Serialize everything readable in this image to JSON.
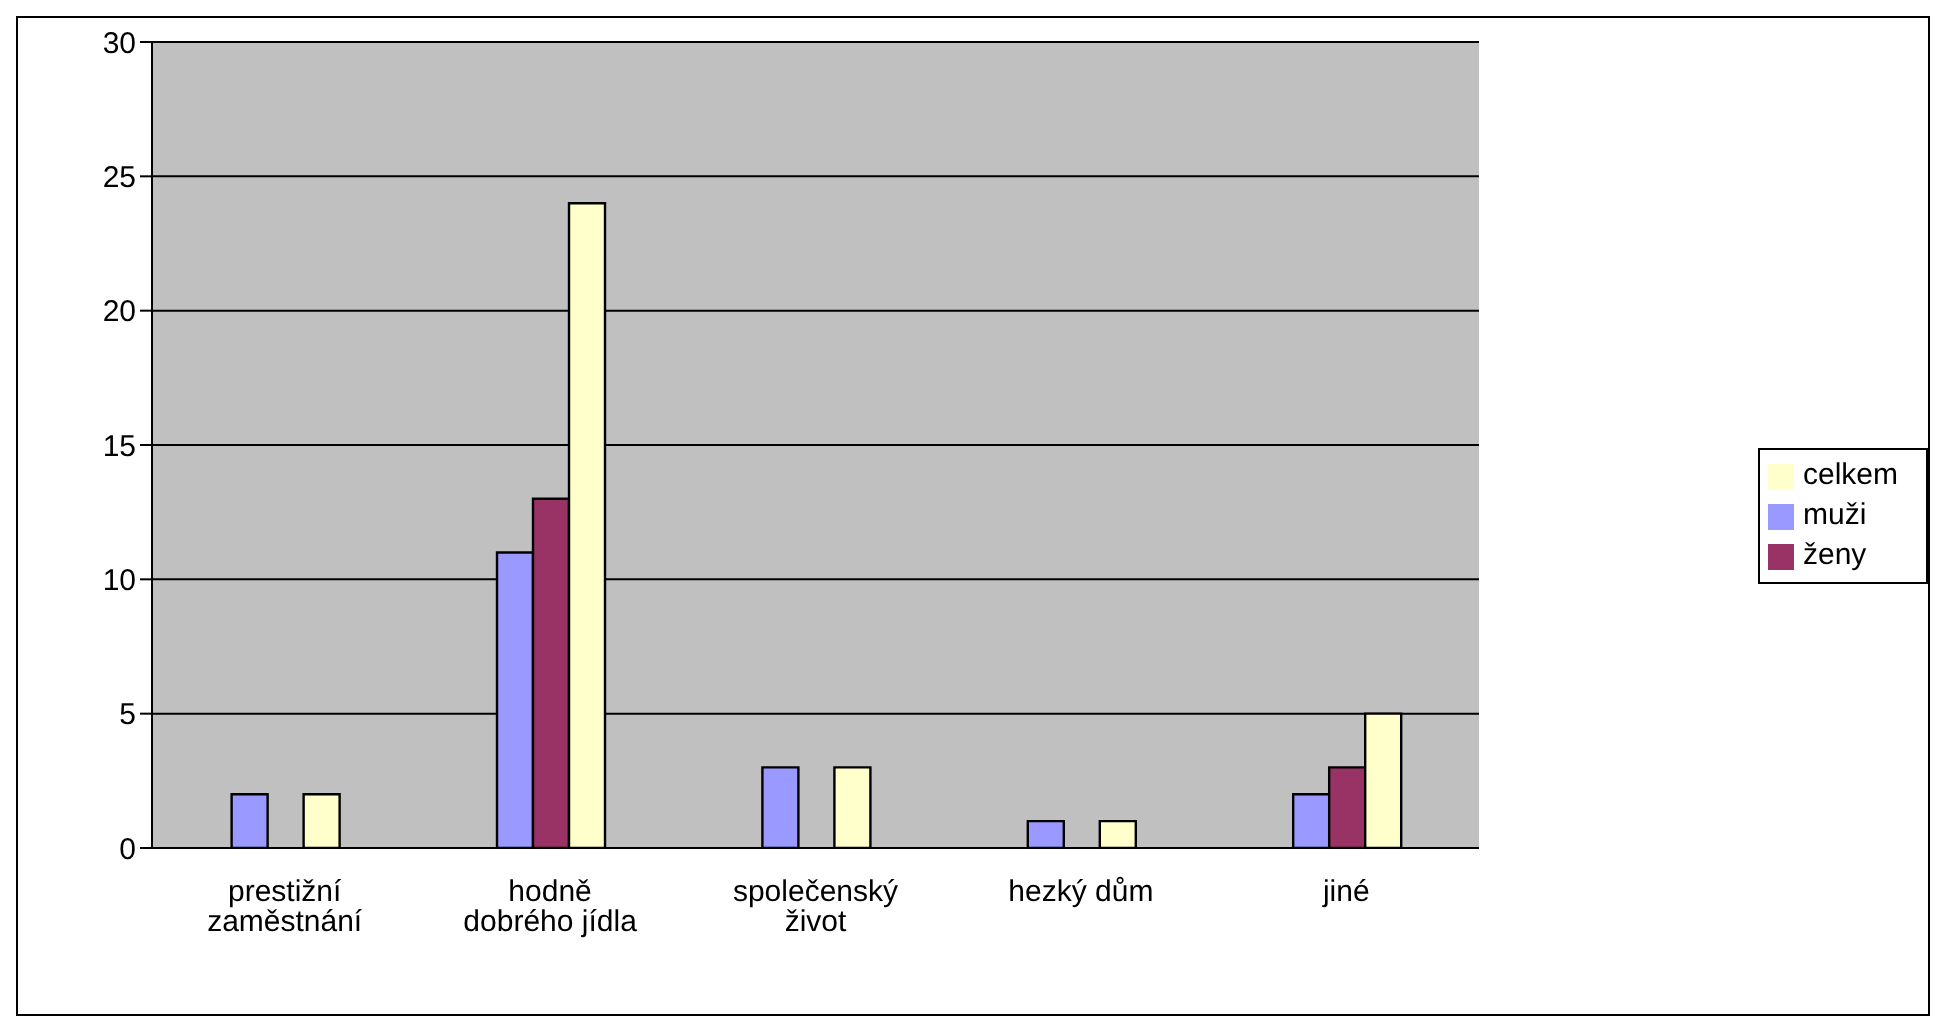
{
  "chart_data": {
    "type": "bar",
    "categories": [
      "prestižní zaměstnání",
      "hodně dobrého jídla",
      "společenský život",
      "hezký dům",
      "jiné"
    ],
    "series": [
      {
        "name": "muži",
        "color": "#9999ff",
        "values": [
          2,
          11,
          3,
          1,
          2
        ]
      },
      {
        "name": "ženy",
        "color": "#993366",
        "values": [
          0,
          13,
          0,
          0,
          3
        ]
      },
      {
        "name": "celkem",
        "color": "#ffffcc",
        "values": [
          2,
          24,
          3,
          1,
          5
        ]
      }
    ],
    "ylim": [
      0,
      30
    ],
    "yticks": [
      0,
      5,
      10,
      15,
      20,
      25,
      30
    ],
    "grid": "y",
    "legend": "right"
  }
}
